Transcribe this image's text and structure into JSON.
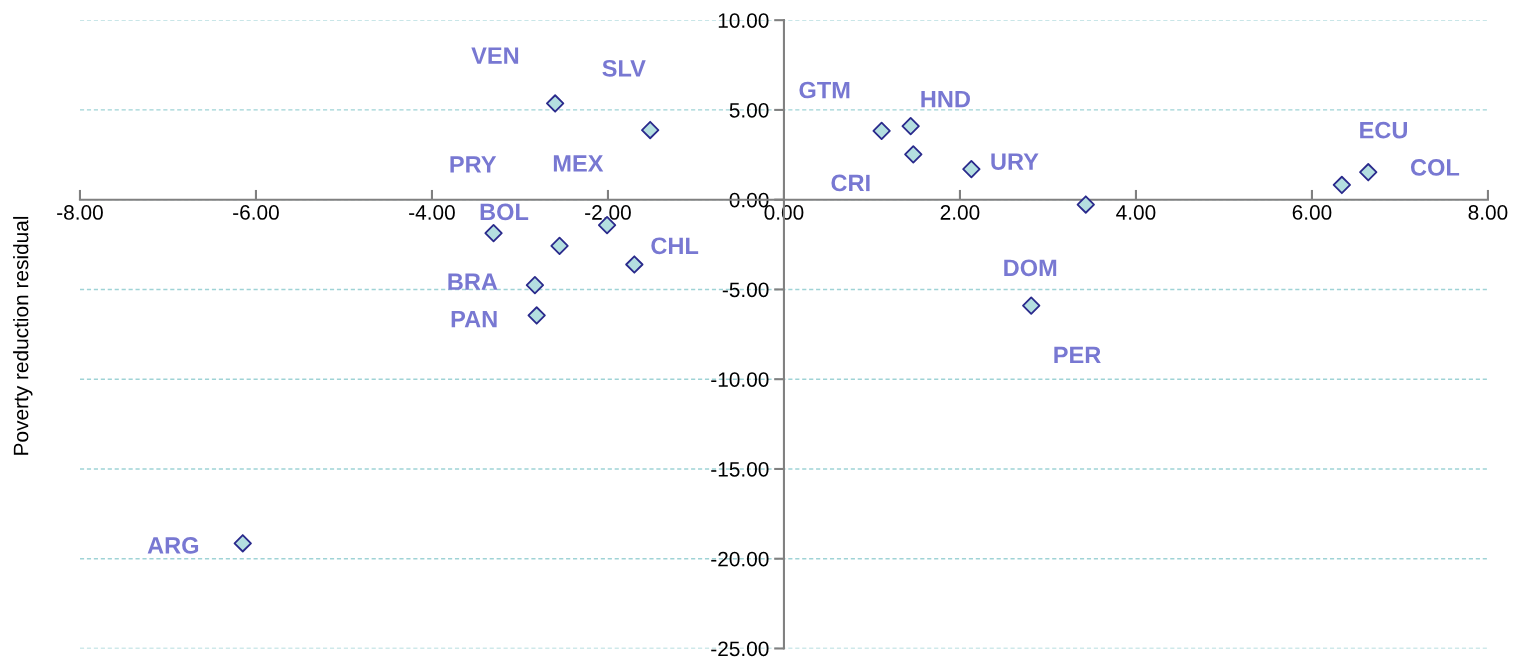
{
  "chart_data": {
    "type": "scatter",
    "ylabel": "Poverty reduction residual",
    "x": [
      -2.6,
      -1.52,
      1.11,
      1.44,
      1.47,
      2.13,
      6.64,
      6.34,
      3.43,
      2.81,
      -2.01,
      -3.3,
      -2.55,
      -1.7,
      -2.83,
      -2.81,
      -6.15
    ],
    "series": [
      {
        "color": "#b4dfe0",
        "values": [
          5.36,
          3.88,
          3.83,
          4.1,
          2.52,
          1.7,
          1.53,
          0.82,
          -0.27,
          -5.9,
          -1.42,
          -1.86,
          -2.57,
          -3.61,
          -4.76,
          -6.45,
          -19.14
        ]
      }
    ],
    "annotations": [
      {
        "text": "VEN",
        "x": -2.6,
        "y": 5.36
      },
      {
        "text": "SLV",
        "x": -1.52,
        "y": 3.88
      },
      {
        "text": "GTM",
        "x": 1.11,
        "y": 3.83
      },
      {
        "text": "HND",
        "x": 1.44,
        "y": 4.1
      },
      {
        "text": "CRI",
        "x": 1.47,
        "y": 2.52
      },
      {
        "text": "URY",
        "x": 2.13,
        "y": 1.7
      },
      {
        "text": "ECU",
        "x": 6.34,
        "y": 0.82
      },
      {
        "text": "COL",
        "x": 6.64,
        "y": 1.53
      },
      {
        "text": "DOM",
        "x": 3.43,
        "y": -0.27
      },
      {
        "text": "PER",
        "x": 2.81,
        "y": -5.9
      },
      {
        "text": "MEX",
        "x": -2.01,
        "y": -1.42
      },
      {
        "text": "PRY",
        "x": -3.3,
        "y": -1.86
      },
      {
        "text": "BOL",
        "x": -2.55,
        "y": -2.57
      },
      {
        "text": "CHL",
        "x": -1.7,
        "y": -3.61
      },
      {
        "text": "BRA",
        "x": -2.83,
        "y": -4.76
      },
      {
        "text": "PAN",
        "x": -2.81,
        "y": -6.45
      },
      {
        "text": "ARG",
        "x": -6.15,
        "y": -19.14
      }
    ],
    "xlim": [
      -8,
      8
    ],
    "ylim": [
      -25,
      10
    ],
    "xticks": [
      {
        "value": -8,
        "label": "-8.00"
      },
      {
        "value": -6,
        "label": "-6.00"
      },
      {
        "value": -4,
        "label": "-4.00"
      },
      {
        "value": -2,
        "label": "-2.00"
      },
      {
        "value": 0,
        "label": "0.00"
      },
      {
        "value": 2,
        "label": "2.00"
      },
      {
        "value": 4,
        "label": "4.00"
      },
      {
        "value": 6,
        "label": "6.00"
      },
      {
        "value": 8,
        "label": "8.00"
      }
    ],
    "yticks": [
      {
        "value": -25,
        "label": "-25.00"
      },
      {
        "value": -20,
        "label": "-20.00"
      },
      {
        "value": -15,
        "label": "-15.00"
      },
      {
        "value": -10,
        "label": "-10.00"
      },
      {
        "value": -5,
        "label": "-5.00"
      },
      {
        "value": 0,
        "label": "0.00"
      },
      {
        "value": 5,
        "label": "5.00"
      },
      {
        "value": 10,
        "label": "10.00"
      }
    ],
    "grid": "y",
    "marker": "diamond"
  }
}
